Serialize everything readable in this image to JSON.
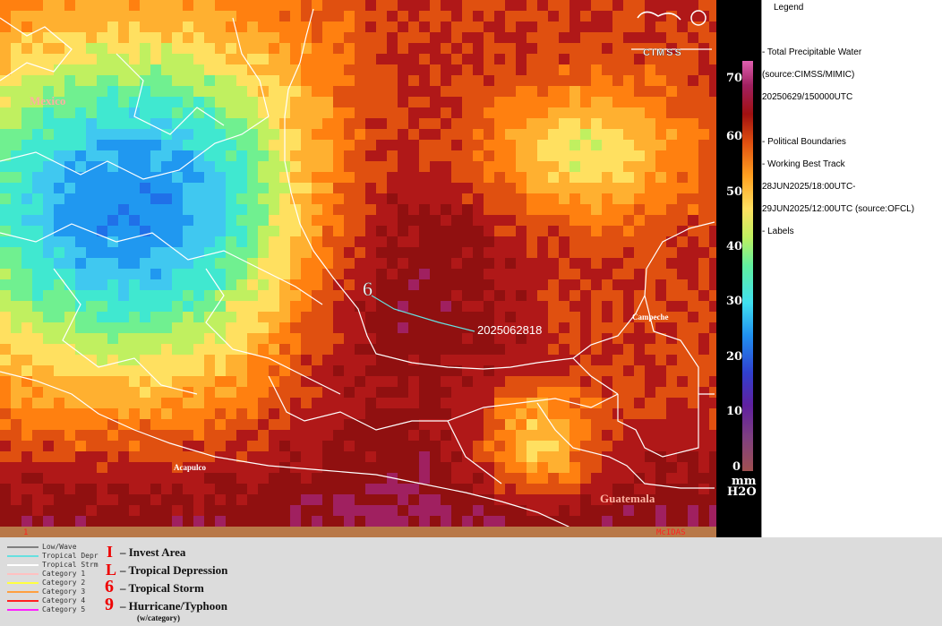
{
  "map": {
    "labels": {
      "mexico": "Mexico",
      "campeche": "Campeche",
      "acapulco": "Acapulco",
      "guatemala": "Guatemala"
    },
    "track_label": "2025062818",
    "frame_number": "1",
    "software": "McIDAS",
    "logo_text": "CIMSS",
    "colors": {
      "land_border": "#ffffff",
      "track": "#66e0e0",
      "place_label": "#ffb0a0"
    }
  },
  "colorbar": {
    "ticks": [
      "70",
      "60",
      "50",
      "40",
      "30",
      "20",
      "10",
      "0"
    ],
    "unit_line1": "mm",
    "unit_line2": "H2O"
  },
  "legend": {
    "title": "Legend",
    "items": [
      "-  Total Precipitable Water",
      "(source:CIMSS/MIMIC)",
      "20250629/150000UTC",
      "-  Political Boundaries",
      "-  Working Best Track",
      "28JUN2025/18:00UTC-",
      "29JUN2025/12:00UTC   (source:OFCL)",
      "-  Labels"
    ]
  },
  "track_legend": {
    "lines": [
      {
        "label": "Low/Wave",
        "color": "#808080"
      },
      {
        "label": "Tropical Depr",
        "color": "#66e0e0"
      },
      {
        "label": "Tropical Strm",
        "color": "#ffffff"
      },
      {
        "label": "Category 1",
        "color": "#ffc0c0"
      },
      {
        "label": "Category 2",
        "color": "#ffff40"
      },
      {
        "label": "Category 3",
        "color": "#ffa040"
      },
      {
        "label": "Category 4",
        "color": "#ff2020"
      },
      {
        "label": "Category 5",
        "color": "#ff20ff"
      }
    ],
    "symbols": [
      {
        "label": "– Invest Area"
      },
      {
        "label": "– Tropical Depression"
      },
      {
        "label": "– Tropical Storm"
      },
      {
        "label": "– Hurricane/Typhoon"
      }
    ],
    "symbol_note": "(w/category)"
  }
}
